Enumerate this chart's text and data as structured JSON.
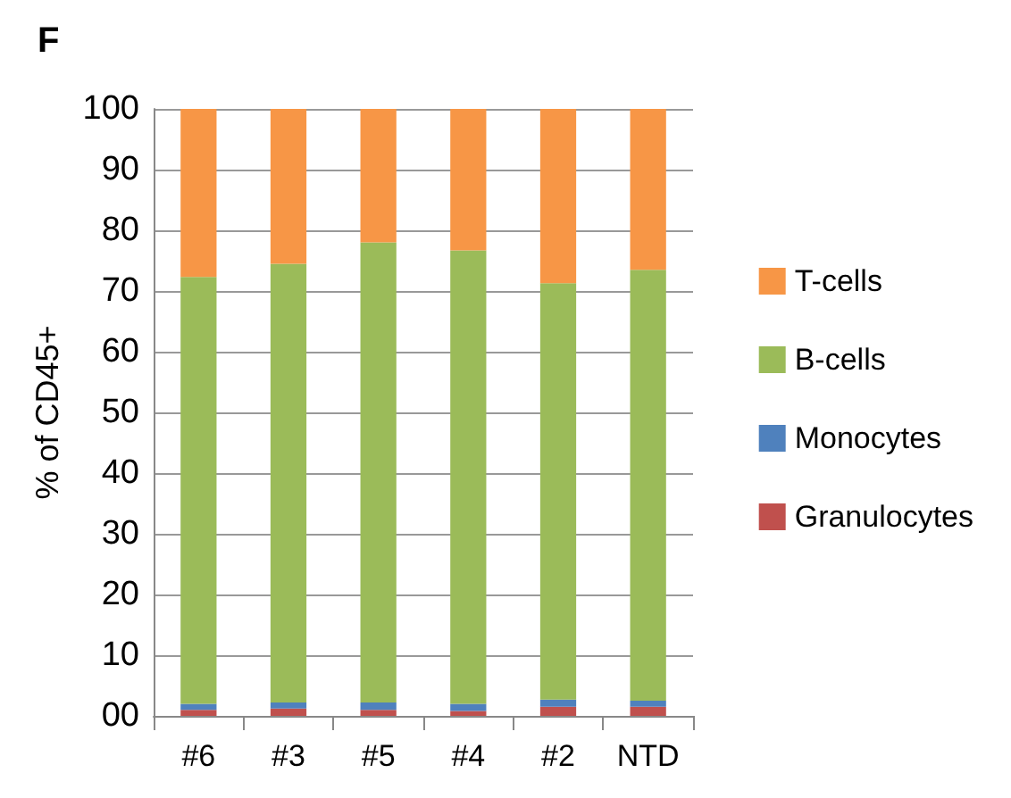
{
  "chart_data": {
    "type": "bar",
    "title": "F",
    "ylabel": "% of CD45+",
    "stacked": true,
    "categories": [
      "#6",
      "#3",
      "#5",
      "#4",
      "#2",
      "NTD"
    ],
    "series": [
      {
        "name": "Granulocytes",
        "color": "#c0504d",
        "values": [
          1.0,
          1.2,
          1.0,
          0.8,
          1.5,
          1.5
        ]
      },
      {
        "name": "Monocytes",
        "color": "#4f81bd",
        "values": [
          1.0,
          1.0,
          1.2,
          1.2,
          1.2,
          1.0
        ]
      },
      {
        "name": "B-cells",
        "color": "#9bbb59",
        "values": [
          70.3,
          72.3,
          75.8,
          74.7,
          68.6,
          71.0
        ]
      },
      {
        "name": "T-cells",
        "color": "#f79646",
        "values": [
          27.7,
          25.5,
          22.0,
          23.3,
          28.7,
          26.5
        ]
      }
    ],
    "ylim": [
      0,
      100
    ],
    "yticks": [
      {
        "value": 0,
        "label": "00"
      },
      10,
      20,
      30,
      40,
      50,
      60,
      70,
      80,
      90,
      100
    ],
    "grid": "y",
    "legend": "right"
  }
}
